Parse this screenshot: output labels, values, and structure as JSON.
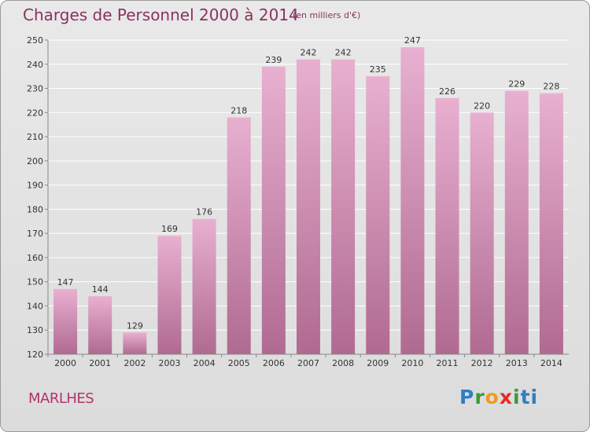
{
  "header": {
    "title": "Charges de Personnel 2000 à 2014",
    "subtitle": "(en milliers d'€)"
  },
  "footer": {
    "city": "MARLHES",
    "logo": "Proxiti"
  },
  "colors": {
    "bar_top": "#e8b0d0",
    "bar_bottom": "#b06a92",
    "text": "#8a3360",
    "grid": "#ffffff"
  },
  "chart_data": {
    "type": "bar",
    "title": "Charges de Personnel 2000 à 2014",
    "subtitle": "(en milliers d'€)",
    "categories": [
      "2000",
      "2001",
      "2002",
      "2003",
      "2004",
      "2005",
      "2006",
      "2007",
      "2008",
      "2009",
      "2010",
      "2011",
      "2012",
      "2013",
      "2014"
    ],
    "values": [
      147,
      144,
      129,
      169,
      176,
      218,
      239,
      242,
      242,
      235,
      247,
      226,
      220,
      229,
      228
    ],
    "ylim": [
      120,
      250
    ],
    "yticks": [
      120,
      130,
      140,
      150,
      160,
      170,
      180,
      190,
      200,
      210,
      220,
      230,
      240,
      250
    ],
    "grid": true,
    "legend": "none"
  }
}
